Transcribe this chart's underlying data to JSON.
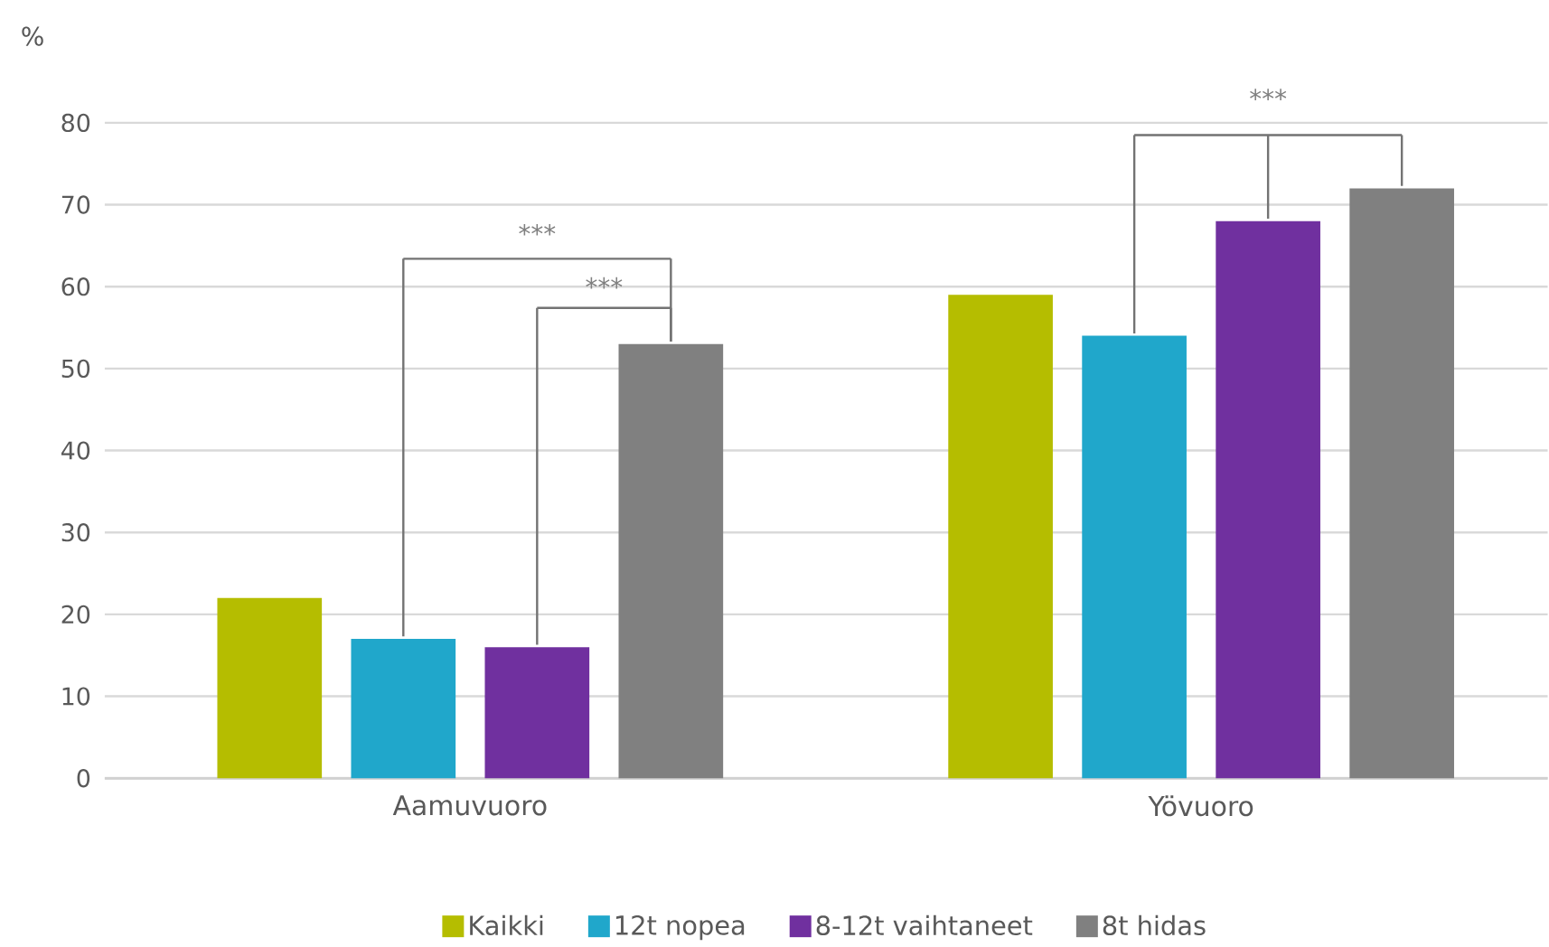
{
  "chart_data": {
    "type": "bar",
    "ylabel": "%",
    "categories": [
      "Aamuvuoro",
      "Yövuoro"
    ],
    "series": [
      {
        "name": "Kaikki",
        "color": "#b5bd00",
        "values": [
          22,
          59
        ]
      },
      {
        "name": "12t nopea",
        "color": "#20a7cb",
        "values": [
          17,
          54
        ]
      },
      {
        "name": "8-12t vaihtaneet",
        "color": "#70309f",
        "values": [
          16,
          68
        ]
      },
      {
        "name": "8t hidas",
        "color": "#808080",
        "values": [
          53,
          72
        ]
      }
    ],
    "ylim": [
      0,
      80
    ],
    "yticks": [
      0,
      10,
      20,
      30,
      40,
      50,
      60,
      70,
      80
    ],
    "grid": "y",
    "legend": "bottom",
    "annotations": [
      "***",
      "***",
      "***"
    ]
  }
}
